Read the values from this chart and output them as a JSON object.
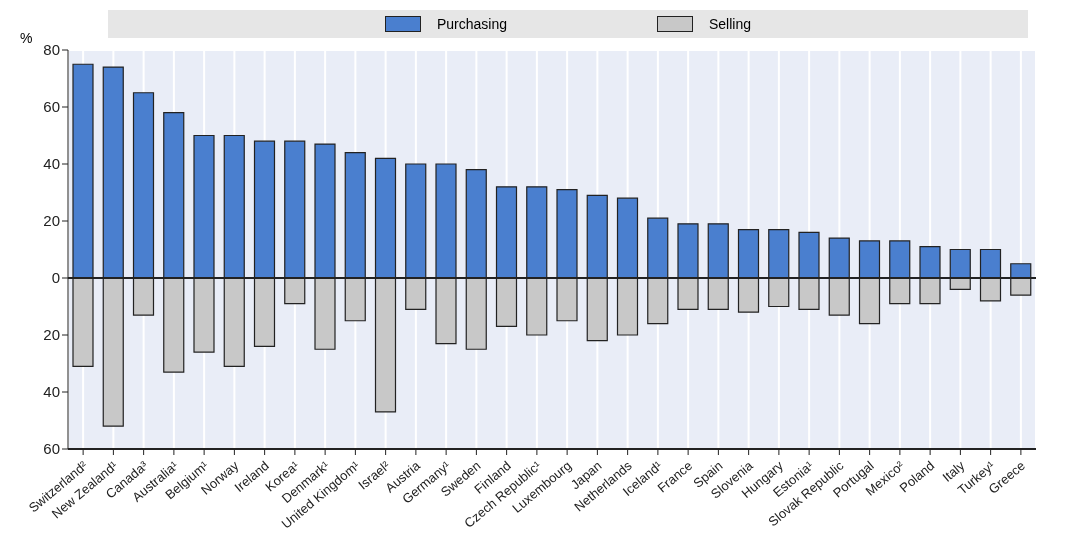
{
  "chart_data": {
    "type": "bar",
    "ylabel": "%",
    "categories": [
      "Switzerland²",
      "New Zealand¹",
      "Canada³",
      "Australia¹",
      "Belgium¹",
      "Norway",
      "Ireland",
      "Korea¹",
      "Denmark¹",
      "United Kingdom¹",
      "Israel²",
      "Austria",
      "Germany¹",
      "Sweden",
      "Finland",
      "Czech Republic¹",
      "Luxembourg",
      "Japan",
      "Netherlands",
      "Iceland¹",
      "France",
      "Spain",
      "Slovenia",
      "Hungary",
      "Estonia¹",
      "Slovak Republic",
      "Portugal",
      "Mexico²",
      "Poland",
      "Italy",
      "Turkey¹",
      "Greece"
    ],
    "series": [
      {
        "name": "Purchasing",
        "color": "#4a7fcf",
        "values": [
          75,
          74,
          65,
          58,
          50,
          50,
          48,
          48,
          47,
          44,
          42,
          40,
          40,
          38,
          32,
          32,
          31,
          29,
          28,
          21,
          19,
          19,
          17,
          17,
          16,
          14,
          13,
          13,
          11,
          10,
          10,
          5
        ]
      },
      {
        "name": "Selling",
        "color": "#c8c8c8",
        "values": [
          -31,
          -52,
          -13,
          -33,
          -26,
          -31,
          -24,
          -9,
          -25,
          -15,
          -47,
          -11,
          -23,
          -25,
          -17,
          -20,
          -15,
          -22,
          -20,
          -16,
          -11,
          -11,
          -12,
          -10,
          -11,
          -13,
          -16,
          -9,
          -9,
          -4,
          -8,
          -6
        ]
      }
    ],
    "stacked": true,
    "ylim": [
      -60,
      80
    ],
    "yticks": [
      80,
      60,
      40,
      20,
      0,
      {
        "value": -20,
        "label": "20"
      },
      {
        "value": -40,
        "label": "40"
      },
      {
        "value": -60,
        "label": "60"
      }
    ],
    "grid": true,
    "legend": "top"
  }
}
